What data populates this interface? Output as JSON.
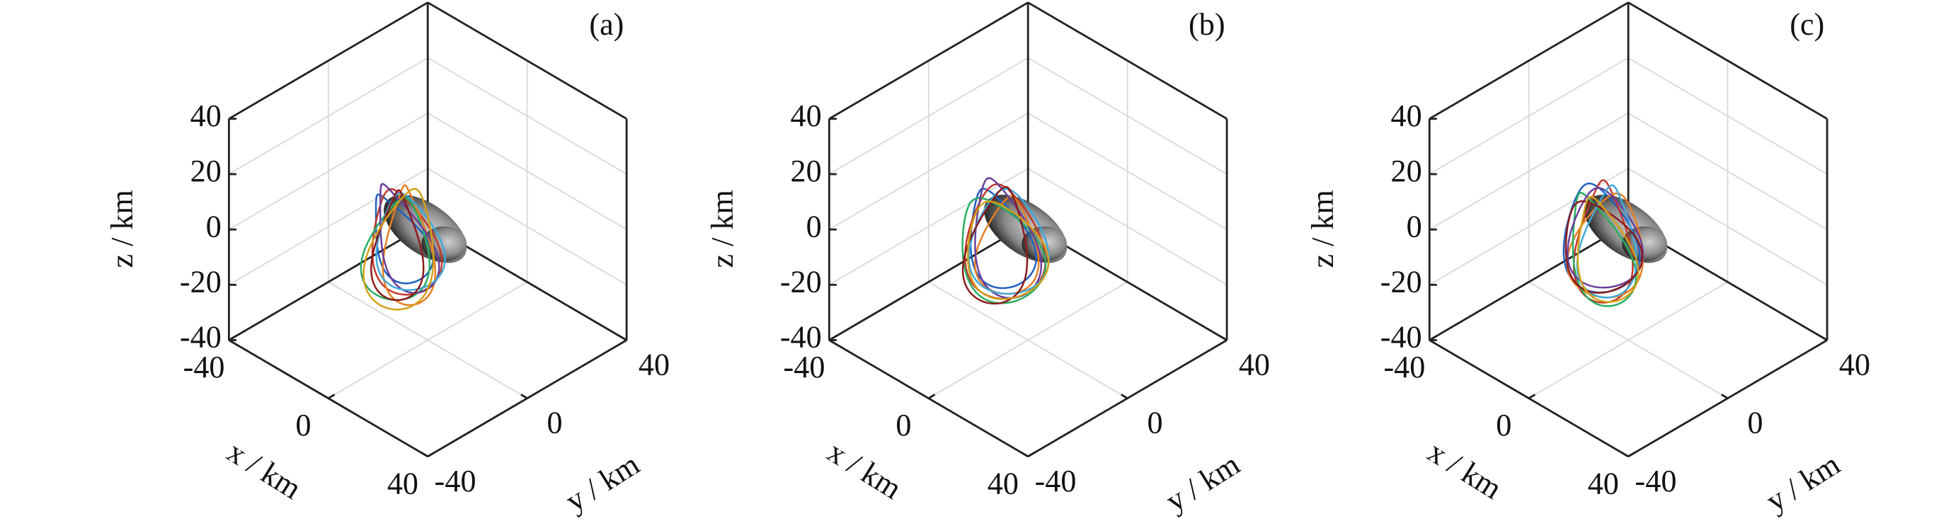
{
  "chart_data": [
    {
      "type": "line3d",
      "panel_label": "(a)",
      "xlabel": "x / km",
      "ylabel": "y / km",
      "zlabel": "z / km",
      "xlim": [
        -40,
        40
      ],
      "ylim": [
        -40,
        40
      ],
      "zlim": [
        -40,
        40
      ],
      "xticks": [
        -40,
        0,
        40
      ],
      "yticks": [
        -40,
        0,
        40
      ],
      "zticks": [
        -40,
        -20,
        0,
        20,
        40
      ],
      "grid": true
    },
    {
      "type": "line3d",
      "panel_label": "(b)",
      "xlabel": "x / km",
      "ylabel": "y / km",
      "zlabel": "z / km",
      "xlim": [
        -40,
        40
      ],
      "ylim": [
        -40,
        40
      ],
      "zlim": [
        -40,
        40
      ],
      "xticks": [
        -40,
        0,
        40
      ],
      "yticks": [
        -40,
        0,
        40
      ],
      "zticks": [
        -40,
        -20,
        0,
        20,
        40
      ],
      "grid": true
    },
    {
      "type": "line3d",
      "panel_label": "(c)",
      "xlabel": "x / km",
      "ylabel": "y / km",
      "zlabel": "z / km",
      "xlim": [
        -40,
        40
      ],
      "ylim": [
        -40,
        40
      ],
      "zlim": [
        -40,
        40
      ],
      "xticks": [
        -40,
        0,
        40
      ],
      "yticks": [
        -40,
        0,
        40
      ],
      "zticks": [
        -40,
        -20,
        0,
        20,
        40
      ],
      "grid": true
    }
  ]
}
